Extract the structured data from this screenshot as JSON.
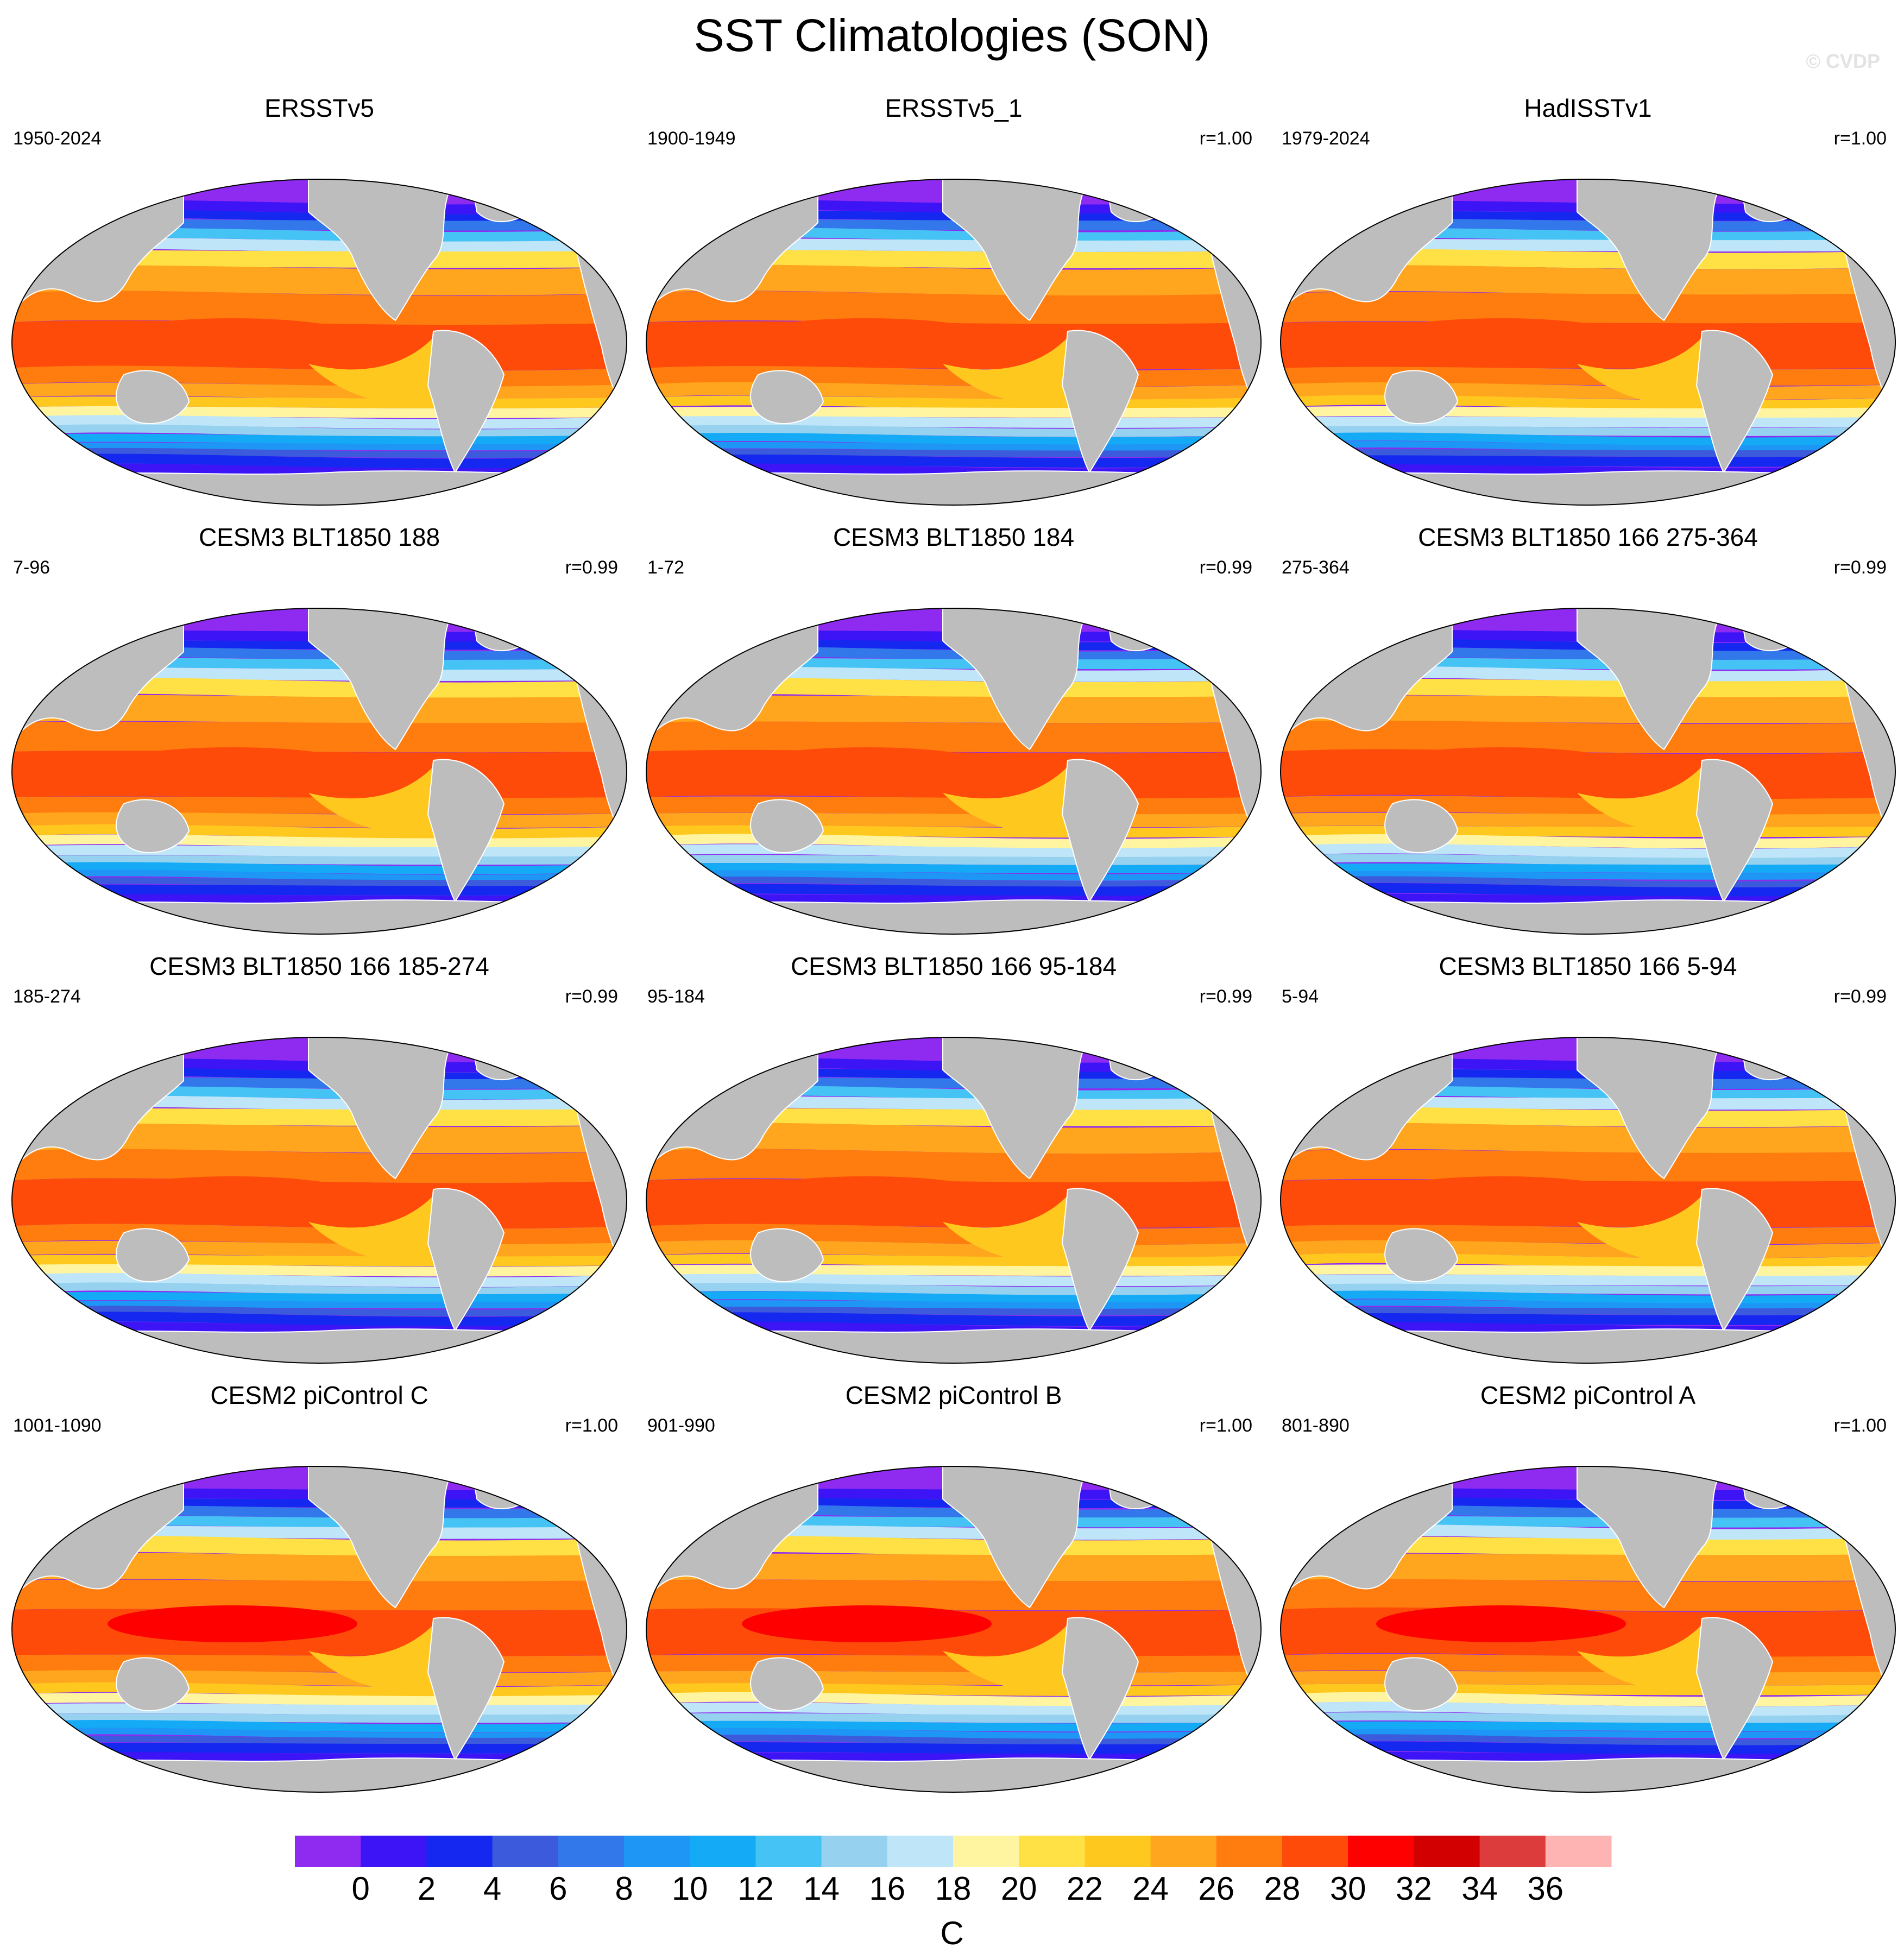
{
  "title": "SST Climatologies (SON)",
  "credit": "© CVDP",
  "panels": [
    {
      "title": "ERSSTv5",
      "period": "1950-2024",
      "r": "",
      "variant": "obs"
    },
    {
      "title": "ERSSTv5_1",
      "period": "1900-1949",
      "r": "r=1.00",
      "variant": "obs"
    },
    {
      "title": "HadISSTv1",
      "period": "1979-2024",
      "r": "r=1.00",
      "variant": "obs"
    },
    {
      "title": "CESM3 BLT1850 188",
      "period": "7-96",
      "r": "r=0.99",
      "variant": "cesm3"
    },
    {
      "title": "CESM3 BLT1850 184",
      "period": "1-72",
      "r": "r=0.99",
      "variant": "cesm3"
    },
    {
      "title": "CESM3 BLT1850 166 275-364",
      "period": "275-364",
      "r": "r=0.99",
      "variant": "cesm3"
    },
    {
      "title": "CESM3 BLT1850 166 185-274",
      "period": "185-274",
      "r": "r=0.99",
      "variant": "cesm3"
    },
    {
      "title": "CESM3 BLT1850 166 95-184",
      "period": "95-184",
      "r": "r=0.99",
      "variant": "cesm3"
    },
    {
      "title": "CESM3 BLT1850 166 5-94",
      "period": "5-94",
      "r": "r=0.99",
      "variant": "cesm3"
    },
    {
      "title": "CESM2 piControl C",
      "period": "1001-1090",
      "r": "r=1.00",
      "variant": "cesm2"
    },
    {
      "title": "CESM2 piControl B",
      "period": "901-990",
      "r": "r=1.00",
      "variant": "cesm2"
    },
    {
      "title": "CESM2 piControl A",
      "period": "801-890",
      "r": "r=1.00",
      "variant": "cesm2"
    }
  ],
  "colorbar": {
    "unit": "C",
    "tick_labels": [
      "0",
      "2",
      "4",
      "6",
      "8",
      "10",
      "12",
      "14",
      "16",
      "18",
      "20",
      "22",
      "24",
      "26",
      "28",
      "30",
      "32",
      "34",
      "36"
    ],
    "colors": [
      "#8f2bf0",
      "#3c14f5",
      "#1428f0",
      "#3c5adc",
      "#3278eb",
      "#1e96f5",
      "#14aaf5",
      "#46c3f5",
      "#96d2f0",
      "#bee6f8",
      "#fff5a0",
      "#ffe146",
      "#ffc81e",
      "#ffa51e",
      "#ff7d0f",
      "#ff4b0a",
      "#ff0000",
      "#d20000",
      "#dc3c3c",
      "#ffb4b4"
    ]
  },
  "land_color": "#bdbdbd"
}
